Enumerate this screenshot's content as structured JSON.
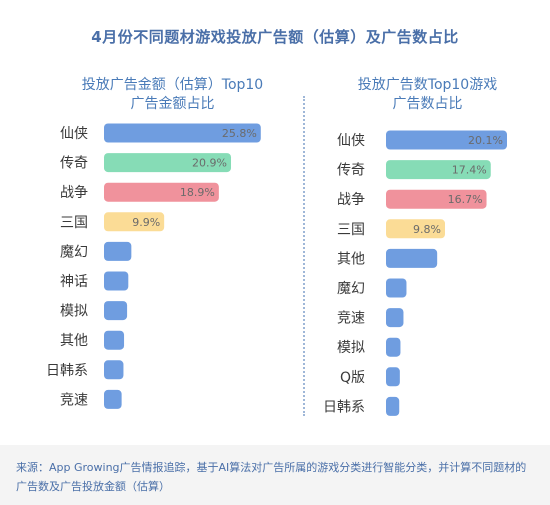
{
  "title": "4月份不同题材游戏投放广告额（估算）及广告数占比",
  "footer": "来源：App Growing广告情报追踪，基于AI算法对广告所属的游戏分类进行智能分类，并计算不同题材的广告数及广告投放金额（估算）",
  "chart_data": [
    {
      "type": "bar",
      "orientation": "horizontal",
      "title_line1": "投放广告金额（估算）Top10",
      "title_line2": "广告金额占比",
      "categories": [
        "仙侠",
        "传奇",
        "战争",
        "三国",
        "魔幻",
        "神话",
        "模拟",
        "其他",
        "日韩系",
        "竞速"
      ],
      "values": [
        25.8,
        20.9,
        18.9,
        9.9,
        4.5,
        4.0,
        3.8,
        3.3,
        3.2,
        2.9
      ],
      "labels": [
        "25.8%",
        "20.9%",
        "18.9%",
        "9.9%",
        "",
        "",
        "",
        "",
        "",
        ""
      ],
      "colors": [
        "#6f9de0",
        "#86dcb6",
        "#f0929c",
        "#fbdc96",
        "#6f9de0",
        "#6f9de0",
        "#6f9de0",
        "#6f9de0",
        "#6f9de0",
        "#6f9de0"
      ],
      "xlim": [
        0,
        26
      ]
    },
    {
      "type": "bar",
      "orientation": "horizontal",
      "title_line1": "投放广告数Top10游戏",
      "title_line2": "广告数占比",
      "categories": [
        "仙侠",
        "传奇",
        "战争",
        "三国",
        "其他",
        "魔幻",
        "竞速",
        "模拟",
        "Q版",
        "日韩系"
      ],
      "values": [
        20.1,
        17.4,
        16.7,
        9.8,
        8.5,
        3.4,
        2.9,
        2.4,
        2.3,
        2.2
      ],
      "labels": [
        "20.1%",
        "17.4%",
        "16.7%",
        "9.8%",
        "",
        "",
        "",
        "",
        "",
        ""
      ],
      "colors": [
        "#6f9de0",
        "#86dcb6",
        "#f0929c",
        "#fbdc96",
        "#6f9de0",
        "#6f9de0",
        "#6f9de0",
        "#6f9de0",
        "#6f9de0",
        "#6f9de0"
      ],
      "xlim": [
        0,
        20.1
      ]
    }
  ]
}
